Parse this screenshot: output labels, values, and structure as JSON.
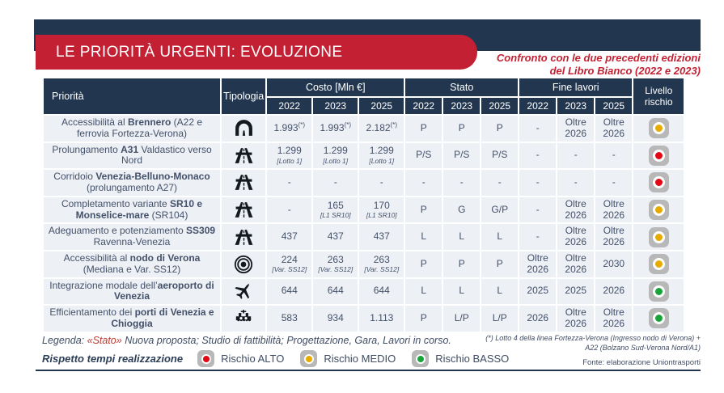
{
  "header": {
    "title": "LE PRIORITÀ URGENTI: EVOLUZIONE",
    "subtitle1": "Confronto con le due precedenti edizioni",
    "subtitle2": "del Libro Bianco (2022 e 2023)"
  },
  "colors": {
    "navy": "#22374f",
    "red": "#c32133",
    "row_background": "#edf0f5",
    "badge_gray": "#b8b8b8",
    "risk": {
      "alto": "#e30613",
      "medio": "#e7ab00",
      "basso": "#1aa339"
    }
  },
  "table": {
    "header": {
      "priorita": "Priorità",
      "tipologia": "Tipologia",
      "groups": [
        {
          "label": "Costo [Mln €]",
          "years": [
            "2022",
            "2023",
            "2025"
          ]
        },
        {
          "label": "Stato",
          "years": [
            "2022",
            "2023",
            "2025"
          ]
        },
        {
          "label": "Fine lavori",
          "years": [
            "2022",
            "2023",
            "2025"
          ]
        }
      ],
      "livello": "Livello rischio"
    },
    "rows": [
      {
        "priority": [
          {
            "t": "Accessibilità al ",
            "b": false
          },
          {
            "t": "Brennero",
            "b": true
          },
          {
            "t": " (A22 e ferrovia Fortezza-Verona)",
            "b": false
          }
        ],
        "icon": "tunnel",
        "costo": [
          {
            "v": "1.993",
            "sup": "(*)"
          },
          {
            "v": "1.993",
            "sup": "(*)"
          },
          {
            "v": "2.182",
            "sup": "(*)"
          }
        ],
        "stato": [
          "P",
          "P",
          "P"
        ],
        "fine": [
          "-",
          "Oltre 2026",
          "Oltre 2026"
        ],
        "rischio": "medio"
      },
      {
        "priority": [
          {
            "t": "Prolungamento ",
            "b": false
          },
          {
            "t": "A31",
            "b": true
          },
          {
            "t": " Valdastico verso Nord",
            "b": false
          }
        ],
        "icon": "motorway",
        "costo": [
          {
            "v": "1.299",
            "note": "[Lotto 1]"
          },
          {
            "v": "1.299",
            "note": "[Lotto 1]"
          },
          {
            "v": "1.299",
            "note": "[Lotto 1]"
          }
        ],
        "stato": [
          "P/S",
          "P/S",
          "P/S"
        ],
        "fine": [
          "-",
          "-",
          "-"
        ],
        "rischio": "alto"
      },
      {
        "priority": [
          {
            "t": "Corridoio ",
            "b": false
          },
          {
            "t": "Venezia-Belluno-Monaco",
            "b": true
          },
          {
            "t": " (prolungamento A27)",
            "b": false
          }
        ],
        "icon": "motorway",
        "costo": [
          {
            "v": "-"
          },
          {
            "v": "-"
          },
          {
            "v": "-"
          }
        ],
        "stato": [
          "-",
          "-",
          "-"
        ],
        "fine": [
          "-",
          "-",
          "-"
        ],
        "rischio": "alto"
      },
      {
        "priority": [
          {
            "t": "Completamento variante ",
            "b": false
          },
          {
            "t": "SR10 e Monselice-mare",
            "b": true
          },
          {
            "t": " (SR104)",
            "b": false
          }
        ],
        "icon": "motorway",
        "costo": [
          {
            "v": "-"
          },
          {
            "v": "165",
            "note": "[L1 SR10]"
          },
          {
            "v": "170",
            "note": "[L1 SR10]"
          }
        ],
        "stato": [
          "P",
          "G",
          "G/P"
        ],
        "fine": [
          "-",
          "Oltre 2026",
          "Oltre 2026"
        ],
        "rischio": "medio"
      },
      {
        "priority": [
          {
            "t": "Adeguamento e potenziamento ",
            "b": false
          },
          {
            "t": "SS309",
            "b": true
          },
          {
            "t": " Ravenna-Venezia",
            "b": false
          }
        ],
        "icon": "motorway",
        "costo": [
          {
            "v": "437"
          },
          {
            "v": "437"
          },
          {
            "v": "437"
          }
        ],
        "stato": [
          "L",
          "L",
          "L"
        ],
        "fine": [
          "-",
          "Oltre 2026",
          "Oltre 2026"
        ],
        "rischio": "medio"
      },
      {
        "priority": [
          {
            "t": "Accessibilità al ",
            "b": false
          },
          {
            "t": "nodo di Verona",
            "b": true
          },
          {
            "t": " (Mediana e Var. SS12)",
            "b": false
          }
        ],
        "icon": "target",
        "costo": [
          {
            "v": "224",
            "note": "[Var. SS12]"
          },
          {
            "v": "263",
            "note": "[Var. SS12]"
          },
          {
            "v": "263",
            "note": "[Var. SS12]"
          }
        ],
        "stato": [
          "P",
          "P",
          "P"
        ],
        "fine": [
          "Oltre 2026",
          "Oltre 2026",
          "2030"
        ],
        "rischio": "medio"
      },
      {
        "priority": [
          {
            "t": "Integrazione modale dell’",
            "b": false
          },
          {
            "t": "aeroporto di Venezia",
            "b": true
          }
        ],
        "icon": "plane",
        "costo": [
          {
            "v": "644"
          },
          {
            "v": "644"
          },
          {
            "v": "644"
          }
        ],
        "stato": [
          "L",
          "L",
          "L"
        ],
        "fine": [
          "2025",
          "2025",
          "2026"
        ],
        "rischio": "basso"
      },
      {
        "priority": [
          {
            "t": "Efficientamento dei ",
            "b": false
          },
          {
            "t": "porti di Venezia e Chioggia",
            "b": true
          }
        ],
        "icon": "ship",
        "costo": [
          {
            "v": "583"
          },
          {
            "v": "934"
          },
          {
            "v": "1.113"
          }
        ],
        "stato": [
          "P",
          "L/P",
          "L/P"
        ],
        "fine": [
          "2026",
          "Oltre 2026",
          "Oltre 2026"
        ],
        "rischio": "basso"
      }
    ]
  },
  "legend": {
    "label": "Legenda:",
    "stato_word": "«Stato»",
    "text": "Nuova proposta; Studio di fattibilità; Progettazione, Gara, Lavori in corso.",
    "risk_title": "Rispetto tempi realizzazione",
    "risks": [
      {
        "label": "Rischio ALTO",
        "level": "alto"
      },
      {
        "label": "Rischio MEDIO",
        "level": "medio"
      },
      {
        "label": "Rischio BASSO",
        "level": "basso"
      }
    ]
  },
  "footnote": {
    "line1": "(*) Lotto 4 della linea Fortezza-Verona (Ingresso nodo di Verona) +",
    "line2": "A22 (Bolzano Sud-Verona Nord/A1)",
    "fonte": "Fonte: elaborazione Uniontrasporti"
  }
}
